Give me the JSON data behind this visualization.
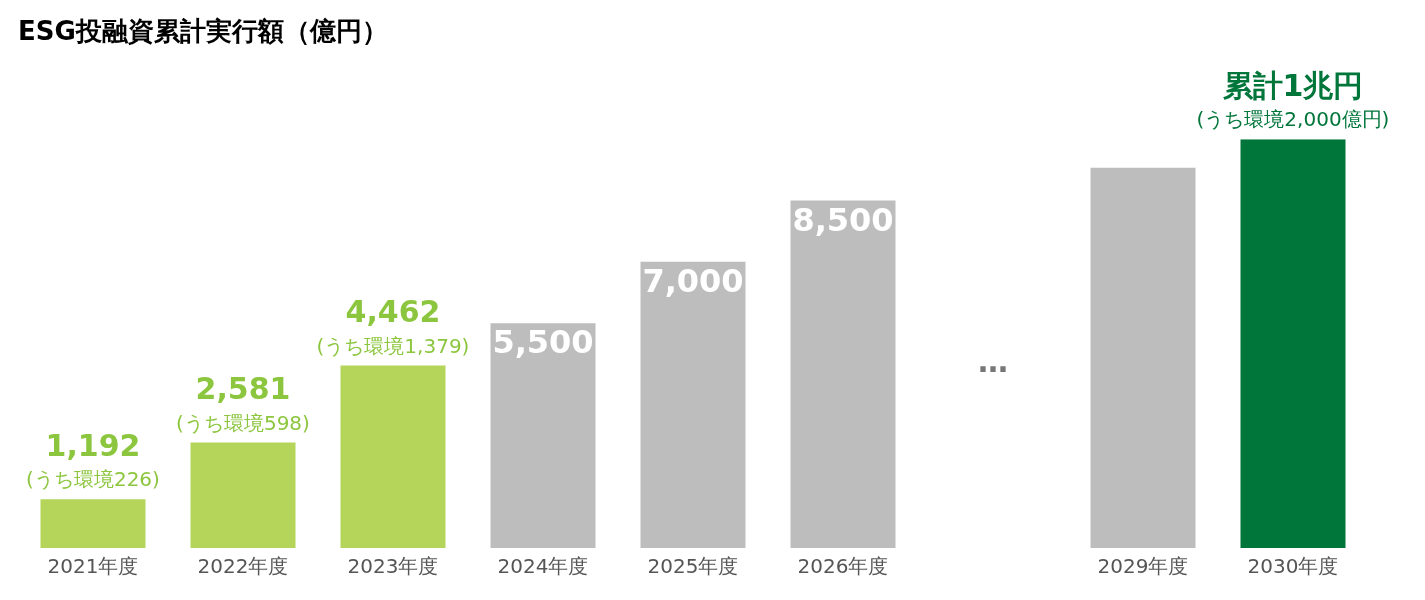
{
  "chart_data": {
    "type": "bar",
    "title": "ESG投融資累計実行額（億円）",
    "categories": [
      "2021年度",
      "2022年度",
      "2023年度",
      "2024年度",
      "2025年度",
      "2026年度",
      null,
      "2029年度",
      "2030年度"
    ],
    "values": [
      1192,
      2581,
      4462,
      5500,
      7000,
      8500,
      null,
      9300,
      10000
    ],
    "colors": [
      "#b5d55a",
      "#b5d55a",
      "#b5d55a",
      "#bdbdbd",
      "#bdbdbd",
      "#bdbdbd",
      "#bdbdbd",
      "#bdbdbd",
      "#00763a"
    ],
    "value_labels": [
      "1,192\n(うち環境226)",
      "2,581\n(うち環境598)",
      "4,462\n(うち環境1,379)",
      "5,500",
      "7,000",
      "8,500",
      null,
      null,
      "累計1兆円\n(うち環境2,000億円)"
    ],
    "annotations": [
      "…"
    ],
    "grid": false,
    "legend": false
  }
}
